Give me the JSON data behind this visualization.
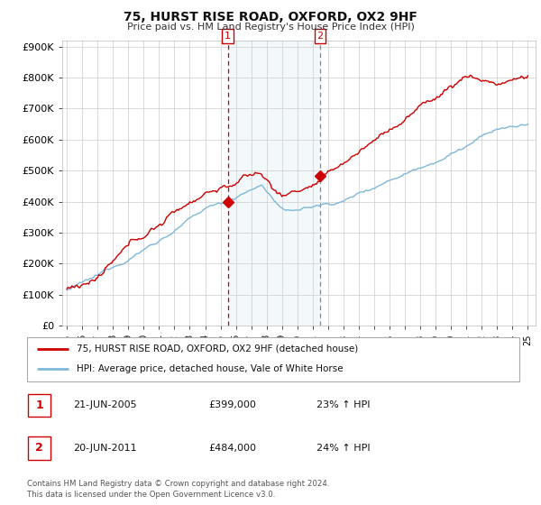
{
  "title": "75, HURST RISE ROAD, OXFORD, OX2 9HF",
  "subtitle": "Price paid vs. HM Land Registry's House Price Index (HPI)",
  "legend_line1": "75, HURST RISE ROAD, OXFORD, OX2 9HF (detached house)",
  "legend_line2": "HPI: Average price, detached house, Vale of White Horse",
  "table_rows": [
    {
      "num": "1",
      "date": "21-JUN-2005",
      "price": "£399,000",
      "pct": "23% ↑ HPI"
    },
    {
      "num": "2",
      "date": "20-JUN-2011",
      "price": "£484,000",
      "pct": "24% ↑ HPI"
    }
  ],
  "footnote": "Contains HM Land Registry data © Crown copyright and database right 2024.\nThis data is licensed under the Open Government Licence v3.0.",
  "ylim": [
    0,
    920000
  ],
  "yticks": [
    0,
    100000,
    200000,
    300000,
    400000,
    500000,
    600000,
    700000,
    800000,
    900000
  ],
  "ytick_labels": [
    "£0",
    "£100K",
    "£200K",
    "£300K",
    "£400K",
    "£500K",
    "£600K",
    "£700K",
    "£800K",
    "£900K"
  ],
  "hpi_color": "#7fb8d8",
  "price_color": "#cc0000",
  "shade_color": "#daeaf5",
  "vline1_color": "#cc0000",
  "vline2_color": "#888888",
  "background_color": "#ffffff",
  "sale1_x": 2005.47,
  "sale1_y": 399000,
  "sale2_x": 2011.47,
  "sale2_y": 484000,
  "xmin": 1994.7,
  "xmax": 2025.5
}
